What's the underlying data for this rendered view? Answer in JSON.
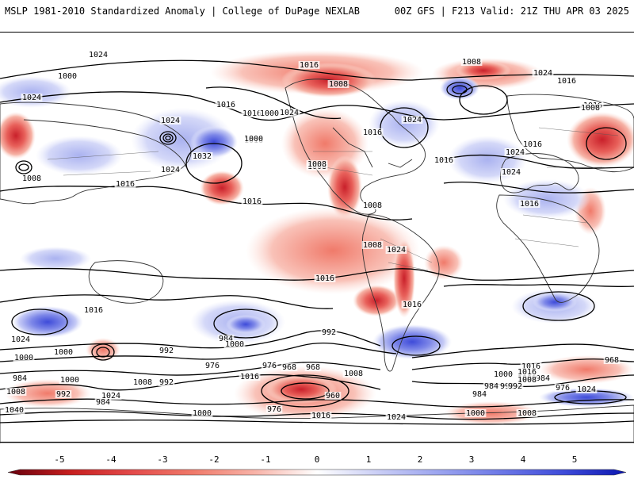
{
  "header": {
    "title_left": "MSLP 1981-2010 Standardized Anomaly | College of DuPage NEXLAB",
    "title_right": "00Z GFS | F213 Valid: 21Z THU APR 03 2025"
  },
  "colors": {
    "neg_strong": "#b2182b",
    "neg_mid": "#e34a33",
    "neg_light": "#f4a582",
    "neg_pale": "#fddbc7",
    "pos_pale": "#d1d6f7",
    "pos_light": "#a6aff0",
    "pos_mid": "#5c6ae0",
    "pos_strong": "#1f2dc4"
  },
  "colorbar": {
    "ticks": [
      "-5",
      "-4",
      "-3",
      "-2",
      "-1",
      "0",
      "1",
      "2",
      "3",
      "4",
      "5"
    ],
    "colors": [
      "#67000d",
      "#c61e1e",
      "#e34a4a",
      "#f07a6a",
      "#f8b3a8",
      "#ffffff",
      "#c9cdf5",
      "#9aa3ef",
      "#6b77e6",
      "#3e4bd9",
      "#0b16b0"
    ]
  },
  "isobar_labels": [
    "1024",
    "1016",
    "1000",
    "1008",
    "1024",
    "1016",
    "1024",
    "1016",
    "1016",
    "1024",
    "1024",
    "1032",
    "1016",
    "1008",
    "1000",
    "1008",
    "1016",
    "1024",
    "1016",
    "1024",
    "1000",
    "1016",
    "1008",
    "1016",
    "1024",
    "1008",
    "1016",
    "1008",
    "1008",
    "1016",
    "1024",
    "1016",
    "1008",
    "1024",
    "1016",
    "992",
    "1008",
    "1016",
    "1000",
    "1016",
    "1024",
    "1000",
    "992",
    "984",
    "992",
    "976",
    "1008",
    "1000",
    "1016",
    "1024",
    "984",
    "1008",
    "1040",
    "1000",
    "992",
    "984",
    "968",
    "976",
    "968",
    "960",
    "992",
    "984",
    "1008",
    "1016",
    "984",
    "976",
    "1000",
    "1008",
    "1016",
    "1000",
    "984",
    "992",
    "1008",
    "1024",
    "968",
    "976",
    "1000",
    "1016",
    "1024"
  ]
}
